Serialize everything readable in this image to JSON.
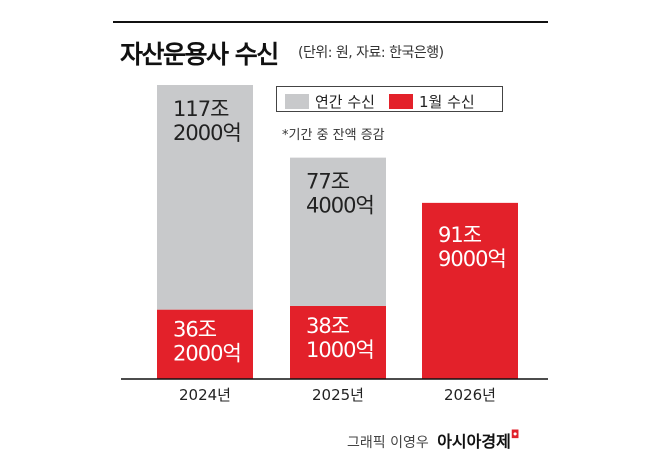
{
  "chart_data": {
    "type": "bar",
    "stacked": true,
    "title": "자산운용사 수신",
    "subtitle": "(단위: 원, 자료: 한국은행)",
    "note": "*기간 중 잔액 증감",
    "categories": [
      "2024년",
      "2025년",
      "2026년"
    ],
    "series": [
      {
        "name": "1월 수신",
        "color": "#e3212a",
        "values": [
          36.2,
          38.1,
          91.9
        ],
        "labels": [
          [
            "36조",
            "2000억"
          ],
          [
            "38조",
            "1000억"
          ],
          [
            "91조",
            "9000억"
          ]
        ]
      },
      {
        "name": "연간 수신",
        "color": "#c8c9cb",
        "values": [
          117.2,
          77.4,
          null
        ],
        "labels": [
          [
            "117조",
            "2000억"
          ],
          [
            "77조",
            "4000억"
          ],
          null
        ]
      }
    ],
    "ylim": [
      0,
      153.4
    ],
    "grid": false,
    "legend": "top-right"
  },
  "credit": {
    "text": "그래픽 이영우",
    "brand": "아시아경제"
  }
}
